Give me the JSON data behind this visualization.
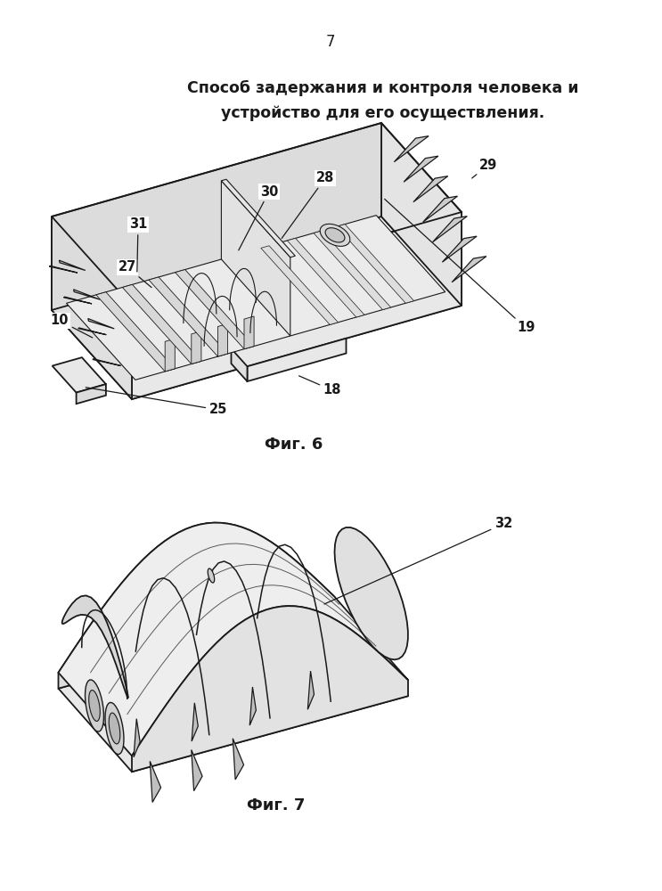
{
  "page_number": "7",
  "title_line1": "Способ задержания и контроля человека и",
  "title_line2": "устройство для его осуществления.",
  "fig6_label": "Фиг. 6",
  "fig7_label": "Фиг. 7",
  "background_color": "#ffffff",
  "text_color": "#1a1a1a",
  "line_color": "#1a1a1a",
  "title_fontsize": 12.5,
  "pagenumber_fontsize": 12,
  "fig_label_fontsize": 13,
  "annotation_fontsize": 10.5
}
